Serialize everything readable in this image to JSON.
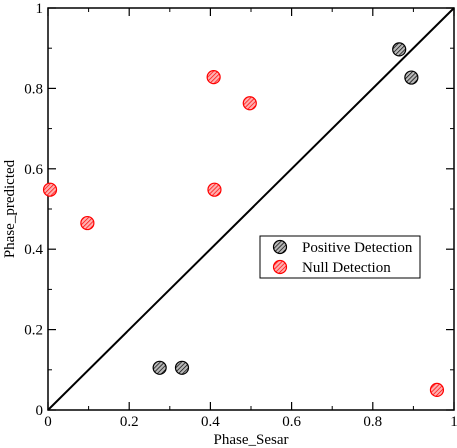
{
  "chart_data": {
    "type": "scatter",
    "title": "",
    "xlabel": "Phase_Sesar",
    "ylabel": "Phase_predicted",
    "xlim": [
      0,
      1
    ],
    "ylim": [
      0,
      1
    ],
    "x_ticks": [
      0,
      0.2,
      0.4,
      0.6,
      0.8,
      1
    ],
    "y_ticks": [
      0,
      0.2,
      0.4,
      0.6,
      0.8,
      1
    ],
    "x_tick_labels": [
      "0",
      "0.2",
      "0.4",
      "0.6",
      "0.8",
      "1"
    ],
    "y_tick_labels": [
      "0",
      "0.2",
      "0.4",
      "0.6",
      "0.8",
      "1"
    ],
    "grid": false,
    "legend_position": "center-right",
    "reference_line": {
      "from": [
        0,
        0
      ],
      "to": [
        1,
        1
      ],
      "color": "#000000"
    },
    "series": [
      {
        "name": "Positive Detection",
        "color": "#000000",
        "points": [
          [
            0.275,
            0.105
          ],
          [
            0.33,
            0.105
          ],
          [
            0.865,
            0.897
          ],
          [
            0.895,
            0.827
          ]
        ]
      },
      {
        "name": "Null Detection",
        "color": "#ff0000",
        "points": [
          [
            0.005,
            0.548
          ],
          [
            0.097,
            0.465
          ],
          [
            0.408,
            0.828
          ],
          [
            0.41,
            0.548
          ],
          [
            0.497,
            0.763
          ],
          [
            0.958,
            0.05
          ]
        ]
      }
    ]
  }
}
